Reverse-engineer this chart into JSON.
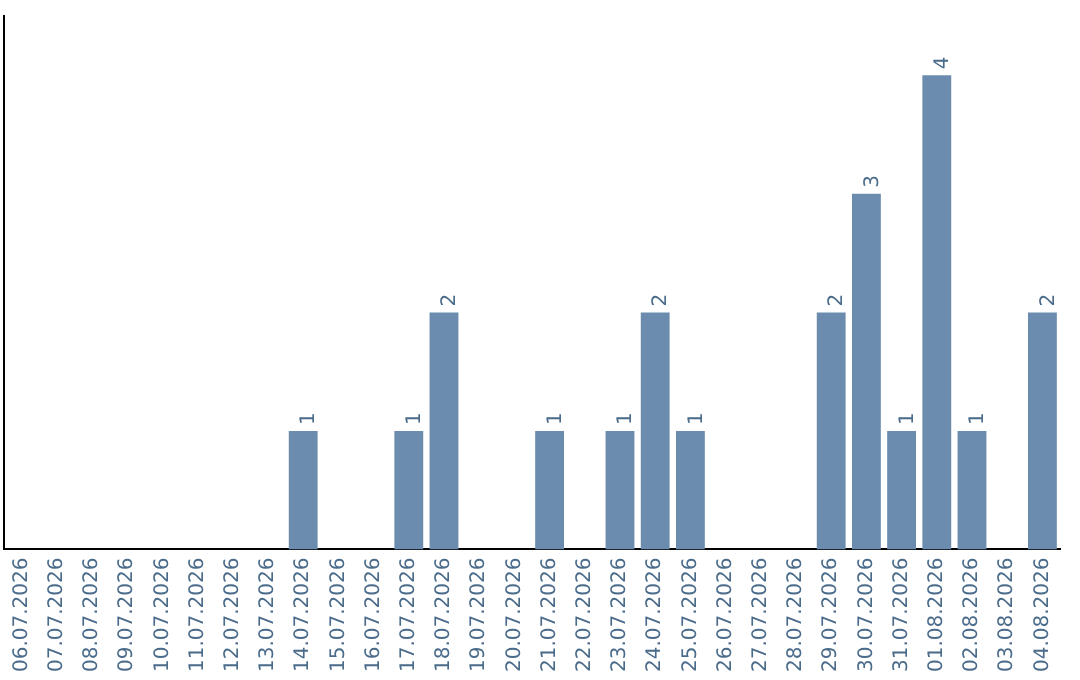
{
  "chart_data": {
    "type": "bar",
    "categories": [
      "06.07.2026",
      "07.07.2026",
      "08.07.2026",
      "09.07.2026",
      "10.07.2026",
      "11.07.2026",
      "12.07.2026",
      "13.07.2026",
      "14.07.2026",
      "15.07.2026",
      "16.07.2026",
      "17.07.2026",
      "18.07.2026",
      "19.07.2026",
      "20.07.2026",
      "21.07.2026",
      "22.07.2026",
      "23.07.2026",
      "24.07.2026",
      "25.07.2026",
      "26.07.2026",
      "27.07.2026",
      "28.07.2026",
      "29.07.2026",
      "30.07.2026",
      "31.07.2026",
      "01.08.2026",
      "02.08.2026",
      "03.08.2026",
      "04.08.2026"
    ],
    "values": [
      0,
      0,
      0,
      0,
      0,
      0,
      0,
      0,
      1,
      0,
      0,
      1,
      2,
      0,
      0,
      1,
      0,
      1,
      2,
      1,
      0,
      0,
      0,
      2,
      3,
      1,
      4,
      1,
      0,
      2
    ],
    "value_labels": [
      null,
      null,
      null,
      null,
      null,
      null,
      null,
      null,
      "1",
      null,
      null,
      "1",
      "2",
      null,
      null,
      "1",
      null,
      "1",
      "2",
      "1",
      null,
      null,
      null,
      "2",
      "3",
      "1",
      "4",
      "1",
      null,
      "2"
    ],
    "color": "#6b8cae",
    "tick_labels": "x",
    "grid": false,
    "legend": false
  }
}
